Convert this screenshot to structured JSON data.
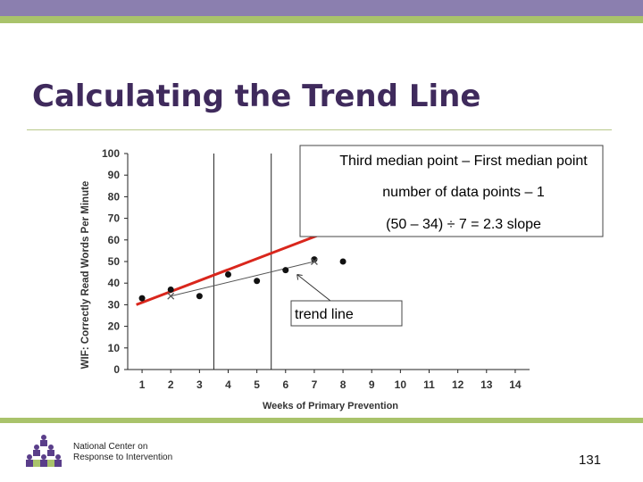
{
  "slide": {
    "title": "Calculating the Trend Line",
    "page_number": "131",
    "org_line1": "National Center on",
    "org_line2": "Response to Intervention"
  },
  "colors": {
    "band_top": "#8b7faf",
    "band_green": "#a9c36b",
    "title": "#3f2a5c",
    "trend_red": "#d9261c"
  },
  "chart_data": {
    "type": "scatter",
    "ylabel": "WIF: Correctly Read Words Per Minute",
    "xlabel": "Weeks of Primary Prevention",
    "x_ticks": [
      1,
      2,
      3,
      4,
      5,
      6,
      7,
      8,
      9,
      10,
      11,
      12,
      13,
      14
    ],
    "y_ticks": [
      0,
      10,
      20,
      30,
      40,
      50,
      60,
      70,
      80,
      90,
      100
    ],
    "xlim": [
      0.5,
      14.5
    ],
    "ylim": [
      0,
      100
    ],
    "grid": false,
    "points": [
      {
        "x": 1,
        "y": 33
      },
      {
        "x": 2,
        "y": 37
      },
      {
        "x": 3,
        "y": 34
      },
      {
        "x": 4,
        "y": 44
      },
      {
        "x": 5,
        "y": 41
      },
      {
        "x": 6,
        "y": 46
      },
      {
        "x": 7,
        "y": 51
      },
      {
        "x": 8,
        "y": 50
      }
    ],
    "median_marks": [
      {
        "x": 2,
        "y": 34
      },
      {
        "x": 7,
        "y": 50
      }
    ],
    "section_dividers_x": [
      3.5,
      5.5
    ],
    "trend_line": {
      "x_start": 0.8,
      "y_start": 30,
      "x_end": 7.5,
      "y_end": 64
    },
    "median_line": {
      "x_start": 2,
      "y_start": 34,
      "x_end": 7,
      "y_end": 50
    },
    "annotation_box": {
      "line1": "Third median point – First median point",
      "line2": "number of data points – 1",
      "line3": "(50 – 34) ÷ 7 = 2.3 slope"
    },
    "trend_label": "trend line",
    "trend_label_target": {
      "x": 6.4,
      "y": 44
    }
  }
}
